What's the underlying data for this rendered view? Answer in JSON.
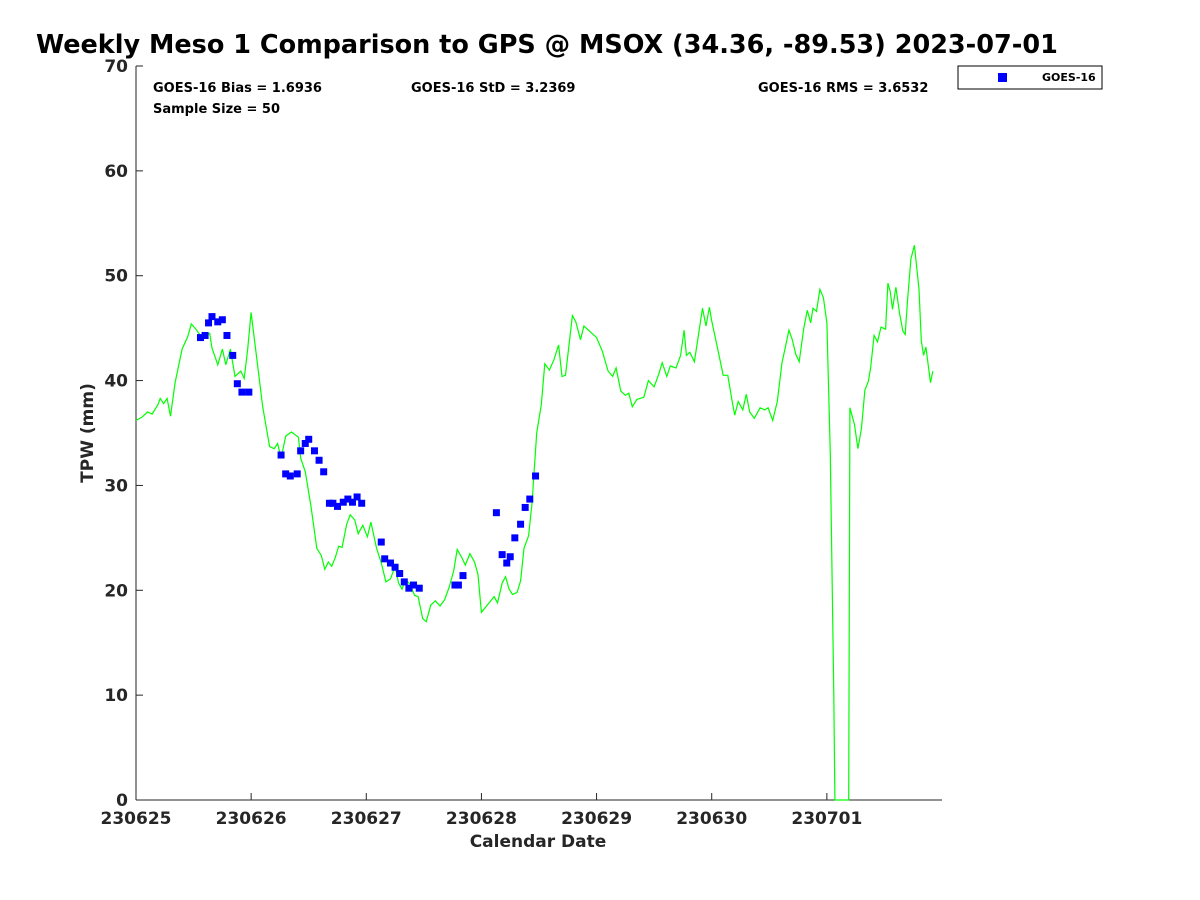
{
  "chart_data": {
    "type": "scatter",
    "title": "Weekly Meso 1 Comparison to GPS @ MSOX (34.36, -89.53) 2023-07-01",
    "xlabel": "Calendar Date",
    "ylabel": "TPW (mm)",
    "xlim": [
      0,
      7
    ],
    "ylim": [
      0,
      70
    ],
    "x_ticks": [
      {
        "value": 0,
        "label": "230625"
      },
      {
        "value": 1,
        "label": "230626"
      },
      {
        "value": 2,
        "label": "230627"
      },
      {
        "value": 3,
        "label": "230628"
      },
      {
        "value": 4,
        "label": "230629"
      },
      {
        "value": 5,
        "label": "230630"
      },
      {
        "value": 6,
        "label": "230701"
      }
    ],
    "y_ticks": [
      {
        "value": 0,
        "label": "0"
      },
      {
        "value": 10,
        "label": "10"
      },
      {
        "value": 20,
        "label": "20"
      },
      {
        "value": 30,
        "label": "30"
      },
      {
        "value": 40,
        "label": "40"
      },
      {
        "value": 50,
        "label": "50"
      },
      {
        "value": 60,
        "label": "60"
      },
      {
        "value": 70,
        "label": "70"
      }
    ],
    "stats": {
      "bias": "GOES-16 Bias = 1.6936",
      "std": "GOES-16 StD = 3.2369",
      "rms": "GOES-16 RMS = 3.6532",
      "sample": "Sample Size = 50"
    },
    "legend": {
      "position": "top-right outside",
      "entries": [
        {
          "label": "GOES-16",
          "color": "#0000ff"
        }
      ]
    },
    "colors": {
      "gps_line": "#00ff00",
      "goes_marker": "#0000ff"
    },
    "series": [
      {
        "name": "GOES-16",
        "style": "markers",
        "points": [
          [
            0.56,
            44.1
          ],
          [
            0.6,
            44.3
          ],
          [
            0.63,
            45.5
          ],
          [
            0.66,
            46.1
          ],
          [
            0.71,
            45.6
          ],
          [
            0.75,
            45.8
          ],
          [
            0.79,
            44.3
          ],
          [
            0.84,
            42.4
          ],
          [
            0.88,
            39.7
          ],
          [
            0.92,
            38.9
          ],
          [
            0.98,
            38.9
          ],
          [
            1.26,
            32.9
          ],
          [
            1.3,
            31.1
          ],
          [
            1.34,
            30.9
          ],
          [
            1.4,
            31.1
          ],
          [
            1.43,
            33.3
          ],
          [
            1.47,
            34.0
          ],
          [
            1.5,
            34.4
          ],
          [
            1.55,
            33.3
          ],
          [
            1.59,
            32.4
          ],
          [
            1.63,
            31.3
          ],
          [
            1.68,
            28.3
          ],
          [
            1.71,
            28.3
          ],
          [
            1.75,
            28.0
          ],
          [
            1.8,
            28.4
          ],
          [
            1.84,
            28.7
          ],
          [
            1.88,
            28.4
          ],
          [
            1.92,
            28.9
          ],
          [
            1.96,
            28.3
          ],
          [
            2.13,
            24.6
          ],
          [
            2.16,
            23.0
          ],
          [
            2.21,
            22.6
          ],
          [
            2.25,
            22.2
          ],
          [
            2.29,
            21.6
          ],
          [
            2.33,
            20.8
          ],
          [
            2.37,
            20.2
          ],
          [
            2.41,
            20.5
          ],
          [
            2.46,
            20.2
          ],
          [
            2.77,
            20.5
          ],
          [
            2.8,
            20.5
          ],
          [
            2.84,
            21.4
          ],
          [
            3.13,
            27.4
          ],
          [
            3.18,
            23.4
          ],
          [
            3.22,
            22.6
          ],
          [
            3.25,
            23.2
          ],
          [
            3.29,
            25.0
          ],
          [
            3.34,
            26.3
          ],
          [
            3.38,
            27.9
          ],
          [
            3.42,
            28.7
          ],
          [
            3.47,
            30.9
          ]
        ]
      },
      {
        "style": "line",
        "points": [
          [
            0,
            36.2
          ],
          [
            0.05,
            36.5
          ],
          [
            0.1,
            37.0
          ],
          [
            0.14,
            36.8
          ],
          [
            0.19,
            37.7
          ],
          [
            0.21,
            38.3
          ],
          [
            0.24,
            37.8
          ],
          [
            0.27,
            38.3
          ],
          [
            0.3,
            36.6
          ],
          [
            0.34,
            39.8
          ],
          [
            0.4,
            43.0
          ],
          [
            0.45,
            44.2
          ],
          [
            0.48,
            45.4
          ],
          [
            0.52,
            44.9
          ],
          [
            0.56,
            44.3
          ],
          [
            0.6,
            44.2
          ],
          [
            0.64,
            44.5
          ],
          [
            0.66,
            43.1
          ],
          [
            0.71,
            41.5
          ],
          [
            0.75,
            43.0
          ],
          [
            0.78,
            41.5
          ],
          [
            0.82,
            43.0
          ],
          [
            0.86,
            40.4
          ],
          [
            0.91,
            40.9
          ],
          [
            0.94,
            40.2
          ],
          [
            0.97,
            43.0
          ],
          [
            1.0,
            46.5
          ],
          [
            1.05,
            42.0
          ],
          [
            1.1,
            37.5
          ],
          [
            1.16,
            33.7
          ],
          [
            1.2,
            33.5
          ],
          [
            1.23,
            34.0
          ],
          [
            1.26,
            32.6
          ],
          [
            1.3,
            34.7
          ],
          [
            1.35,
            35.1
          ],
          [
            1.41,
            34.6
          ],
          [
            1.43,
            32.6
          ],
          [
            1.47,
            31.3
          ],
          [
            1.52,
            28.0
          ],
          [
            1.57,
            24.0
          ],
          [
            1.61,
            23.3
          ],
          [
            1.64,
            22.0
          ],
          [
            1.67,
            22.7
          ],
          [
            1.7,
            22.3
          ],
          [
            1.73,
            23.1
          ],
          [
            1.76,
            24.2
          ],
          [
            1.79,
            24.1
          ],
          [
            1.83,
            26.3
          ],
          [
            1.86,
            27.2
          ],
          [
            1.9,
            26.7
          ],
          [
            1.93,
            25.4
          ],
          [
            1.97,
            26.2
          ],
          [
            2.01,
            25.1
          ],
          [
            2.04,
            26.5
          ],
          [
            2.09,
            24.0
          ],
          [
            2.13,
            22.6
          ],
          [
            2.17,
            20.8
          ],
          [
            2.21,
            21.1
          ],
          [
            2.25,
            22.3
          ],
          [
            2.28,
            20.7
          ],
          [
            2.31,
            20.1
          ],
          [
            2.34,
            21.0
          ],
          [
            2.38,
            20.6
          ],
          [
            2.42,
            19.5
          ],
          [
            2.45,
            19.4
          ],
          [
            2.49,
            17.3
          ],
          [
            2.52,
            17.0
          ],
          [
            2.56,
            18.6
          ],
          [
            2.6,
            19.0
          ],
          [
            2.64,
            18.5
          ],
          [
            2.68,
            19.1
          ],
          [
            2.72,
            20.3
          ],
          [
            2.76,
            21.9
          ],
          [
            2.79,
            23.9
          ],
          [
            2.83,
            23.1
          ],
          [
            2.86,
            22.4
          ],
          [
            2.9,
            23.5
          ],
          [
            2.94,
            22.7
          ],
          [
            2.97,
            21.5
          ],
          [
            3.0,
            17.9
          ],
          [
            3.06,
            18.7
          ],
          [
            3.11,
            19.4
          ],
          [
            3.14,
            18.8
          ],
          [
            3.18,
            20.7
          ],
          [
            3.21,
            21.3
          ],
          [
            3.24,
            20.1
          ],
          [
            3.27,
            19.6
          ],
          [
            3.31,
            19.8
          ],
          [
            3.34,
            20.9
          ],
          [
            3.37,
            24.0
          ],
          [
            3.41,
            25.2
          ],
          [
            3.44,
            28.4
          ],
          [
            3.48,
            35.0
          ],
          [
            3.52,
            37.7
          ],
          [
            3.55,
            41.6
          ],
          [
            3.59,
            41.0
          ],
          [
            3.63,
            42.0
          ],
          [
            3.67,
            43.4
          ],
          [
            3.7,
            40.4
          ],
          [
            3.73,
            40.5
          ],
          [
            3.76,
            43.3
          ],
          [
            3.79,
            46.2
          ],
          [
            3.82,
            45.6
          ],
          [
            3.86,
            43.9
          ],
          [
            3.89,
            45.2
          ],
          [
            3.93,
            44.8
          ],
          [
            4.0,
            44.1
          ],
          [
            4.05,
            42.8
          ],
          [
            4.1,
            40.9
          ],
          [
            4.14,
            40.4
          ],
          [
            4.17,
            41.2
          ],
          [
            4.21,
            39.0
          ],
          [
            4.25,
            38.6
          ],
          [
            4.28,
            38.8
          ],
          [
            4.31,
            37.5
          ],
          [
            4.35,
            38.2
          ],
          [
            4.41,
            38.4
          ],
          [
            4.45,
            40.0
          ],
          [
            4.5,
            39.4
          ],
          [
            4.54,
            40.6
          ],
          [
            4.57,
            41.7
          ],
          [
            4.61,
            40.4
          ],
          [
            4.64,
            41.4
          ],
          [
            4.69,
            41.2
          ],
          [
            4.73,
            42.4
          ],
          [
            4.76,
            44.8
          ],
          [
            4.78,
            42.4
          ],
          [
            4.81,
            42.7
          ],
          [
            4.85,
            41.8
          ],
          [
            4.88,
            44.0
          ],
          [
            4.92,
            46.9
          ],
          [
            4.95,
            45.2
          ],
          [
            4.98,
            47.0
          ],
          [
            5.0,
            45.7
          ],
          [
            5.06,
            42.6
          ],
          [
            5.1,
            40.5
          ],
          [
            5.14,
            40.5
          ],
          [
            5.17,
            38.5
          ],
          [
            5.2,
            36.7
          ],
          [
            5.23,
            38.0
          ],
          [
            5.27,
            37.2
          ],
          [
            5.3,
            38.7
          ],
          [
            5.33,
            37.0
          ],
          [
            5.37,
            36.4
          ],
          [
            5.42,
            37.4
          ],
          [
            5.46,
            37.2
          ],
          [
            5.49,
            37.4
          ],
          [
            5.53,
            36.2
          ],
          [
            5.57,
            38.0
          ],
          [
            5.61,
            41.7
          ],
          [
            5.64,
            43.2
          ],
          [
            5.67,
            44.8
          ],
          [
            5.7,
            43.9
          ],
          [
            5.73,
            42.5
          ],
          [
            5.76,
            41.8
          ],
          [
            5.8,
            45.0
          ],
          [
            5.83,
            46.7
          ],
          [
            5.86,
            45.5
          ],
          [
            5.88,
            46.9
          ],
          [
            5.91,
            46.6
          ],
          [
            5.94,
            48.7
          ],
          [
            5.97,
            47.9
          ],
          [
            6.0,
            45.5
          ],
          [
            6.03,
            33.0
          ],
          [
            6.06,
            10.0
          ],
          [
            6.07,
            0
          ],
          [
            6.19,
            0
          ],
          [
            6.2,
            37.4
          ],
          [
            6.24,
            35.8
          ],
          [
            6.27,
            33.5
          ],
          [
            6.3,
            35.4
          ],
          [
            6.33,
            39.1
          ],
          [
            6.36,
            39.9
          ],
          [
            6.38,
            41.2
          ],
          [
            6.41,
            44.3
          ],
          [
            6.44,
            43.7
          ],
          [
            6.47,
            45.1
          ],
          [
            6.51,
            44.9
          ],
          [
            6.53,
            49.3
          ],
          [
            6.55,
            48.5
          ],
          [
            6.57,
            46.8
          ],
          [
            6.6,
            48.9
          ],
          [
            6.63,
            46.5
          ],
          [
            6.66,
            44.7
          ],
          [
            6.68,
            44.4
          ],
          [
            6.7,
            47.6
          ],
          [
            6.73,
            51.6
          ],
          [
            6.76,
            52.9
          ],
          [
            6.8,
            48.7
          ],
          [
            6.82,
            43.8
          ],
          [
            6.84,
            42.4
          ],
          [
            6.86,
            43.2
          ],
          [
            6.9,
            39.8
          ],
          [
            6.92,
            40.9
          ]
        ]
      }
    ]
  }
}
